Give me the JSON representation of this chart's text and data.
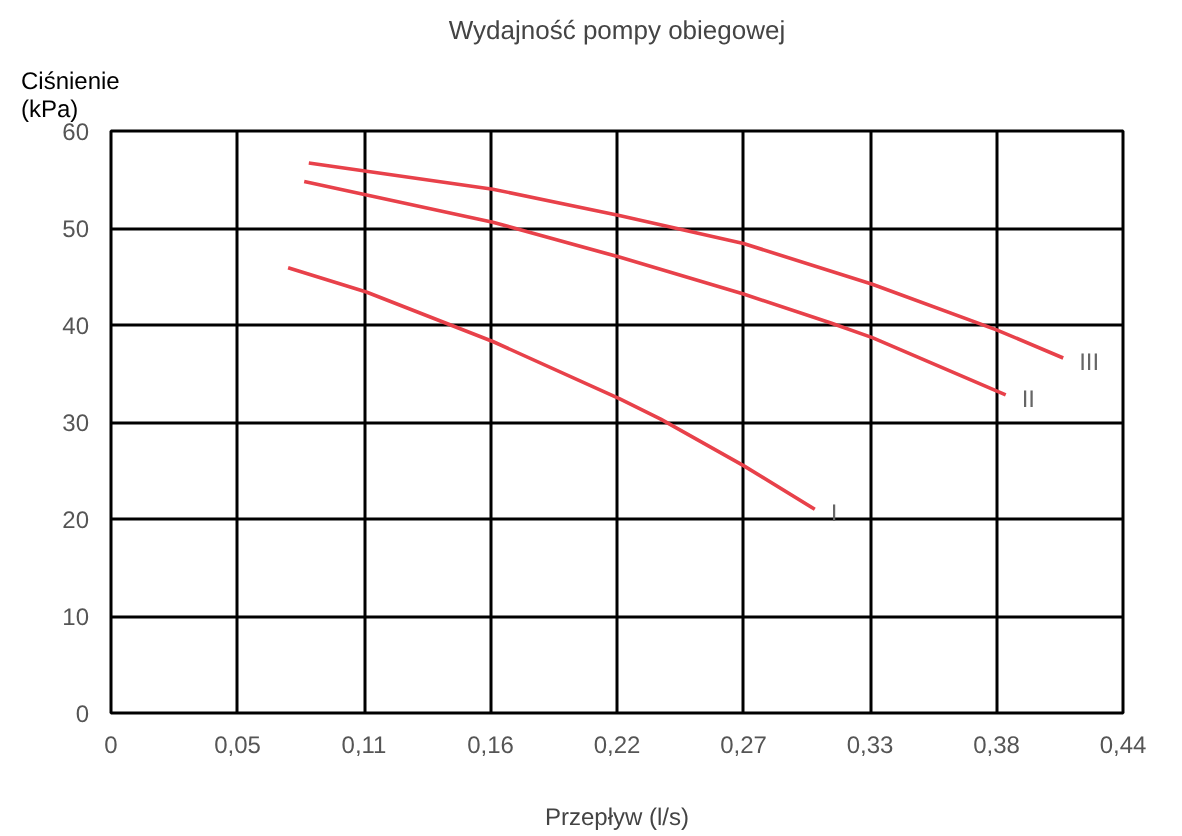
{
  "chart_data": {
    "type": "line",
    "title": "Wydajność pompy obiegowej",
    "xlabel": "Przepływ (l/s)",
    "ylabel": "Ciśnienie (kPa)",
    "xlim": [
      0,
      0.44
    ],
    "ylim": [
      0,
      60
    ],
    "xticks": [
      0,
      {
        "value": 0.055,
        "label": "0,05"
      },
      {
        "value": 0.11,
        "label": "0,11"
      },
      {
        "value": 0.165,
        "label": "0,16"
      },
      {
        "value": 0.22,
        "label": "0,22"
      },
      {
        "value": 0.275,
        "label": "0,27"
      },
      {
        "value": 0.33,
        "label": "0,33"
      },
      {
        "value": 0.385,
        "label": "0,38"
      },
      {
        "value": 0.44,
        "label": "0,44"
      }
    ],
    "yticks": [
      0,
      10,
      20,
      30,
      40,
      50,
      60
    ],
    "grid": true,
    "line_style": "solid",
    "series": [
      {
        "name": "I",
        "color": "#e8414a",
        "x": [
          0.077,
          0.111,
          0.166,
          0.221,
          0.239,
          0.275,
          0.306
        ],
        "values": [
          45.9,
          43.4,
          38.3,
          32.4,
          30.3,
          25.5,
          21.0
        ]
      },
      {
        "name": "II",
        "color": "#e8414a",
        "x": [
          0.084,
          0.166,
          0.221,
          0.275,
          0.313,
          0.331,
          0.389
        ],
        "values": [
          54.8,
          50.6,
          47.0,
          43.2,
          40.2,
          38.7,
          32.8
        ]
      },
      {
        "name": "III",
        "color": "#e8414a",
        "x": [
          0.086,
          0.166,
          0.221,
          0.275,
          0.331,
          0.385,
          0.414
        ],
        "values": [
          56.7,
          54.0,
          51.3,
          48.4,
          44.2,
          39.5,
          36.6
        ]
      }
    ]
  }
}
